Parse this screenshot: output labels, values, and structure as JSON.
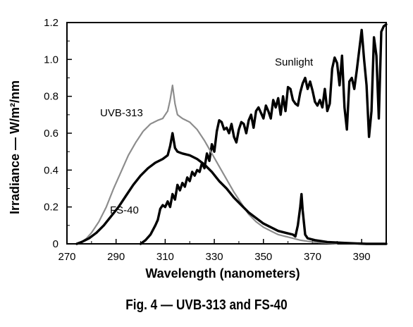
{
  "chart_data": {
    "type": "line",
    "xlabel": "Wavelength (nanometers)",
    "ylabel": "Irradiance — W/m²/nm",
    "xlim": [
      270,
      400
    ],
    "ylim": [
      0,
      1.2
    ],
    "x_ticks": [
      "270",
      "290",
      "310",
      "330",
      "350",
      "370",
      "390"
    ],
    "y_ticks": [
      "0",
      "0.2",
      "0.4",
      "0.6",
      "0.8",
      "1.0",
      "1.2"
    ],
    "grid": false,
    "annotations": [
      "Sunlight",
      "UVB-313",
      "FS-40"
    ],
    "series": [
      {
        "name": "Sunlight",
        "color": "#000000",
        "style": "thick",
        "points": [
          [
            300,
            0
          ],
          [
            302,
            0.02
          ],
          [
            304,
            0.05
          ],
          [
            306,
            0.1
          ],
          [
            307,
            0.13
          ],
          [
            308,
            0.19
          ],
          [
            309,
            0.21
          ],
          [
            310,
            0.2
          ],
          [
            311,
            0.23
          ],
          [
            312,
            0.2
          ],
          [
            313,
            0.27
          ],
          [
            314,
            0.24
          ],
          [
            315,
            0.32
          ],
          [
            316,
            0.29
          ],
          [
            317,
            0.33
          ],
          [
            318,
            0.31
          ],
          [
            319,
            0.36
          ],
          [
            320,
            0.34
          ],
          [
            321,
            0.39
          ],
          [
            322,
            0.37
          ],
          [
            323,
            0.4
          ],
          [
            324,
            0.39
          ],
          [
            325,
            0.44
          ],
          [
            326,
            0.41
          ],
          [
            327,
            0.49
          ],
          [
            328,
            0.45
          ],
          [
            329,
            0.54
          ],
          [
            330,
            0.5
          ],
          [
            331,
            0.61
          ],
          [
            332,
            0.67
          ],
          [
            333,
            0.66
          ],
          [
            334,
            0.62
          ],
          [
            335,
            0.63
          ],
          [
            336,
            0.6
          ],
          [
            337,
            0.65
          ],
          [
            338,
            0.58
          ],
          [
            339,
            0.55
          ],
          [
            340,
            0.62
          ],
          [
            341,
            0.66
          ],
          [
            342,
            0.65
          ],
          [
            343,
            0.6
          ],
          [
            344,
            0.67
          ],
          [
            345,
            0.7
          ],
          [
            346,
            0.63
          ],
          [
            347,
            0.72
          ],
          [
            348,
            0.74
          ],
          [
            349,
            0.71
          ],
          [
            350,
            0.68
          ],
          [
            351,
            0.75
          ],
          [
            352,
            0.72
          ],
          [
            353,
            0.68
          ],
          [
            354,
            0.78
          ],
          [
            355,
            0.74
          ],
          [
            356,
            0.79
          ],
          [
            357,
            0.7
          ],
          [
            358,
            0.8
          ],
          [
            359,
            0.72
          ],
          [
            360,
            0.85
          ],
          [
            361,
            0.84
          ],
          [
            362,
            0.78
          ],
          [
            363,
            0.76
          ],
          [
            364,
            0.75
          ],
          [
            365,
            0.82
          ],
          [
            366,
            0.87
          ],
          [
            367,
            0.9
          ],
          [
            368,
            0.84
          ],
          [
            369,
            0.88
          ],
          [
            370,
            0.83
          ],
          [
            371,
            0.77
          ],
          [
            372,
            0.75
          ],
          [
            373,
            0.78
          ],
          [
            374,
            0.74
          ],
          [
            375,
            0.84
          ],
          [
            376,
            0.72
          ],
          [
            377,
            0.76
          ],
          [
            378,
            0.95
          ],
          [
            379,
            1.01
          ],
          [
            380,
            0.98
          ],
          [
            381,
            0.86
          ],
          [
            382,
            1.02
          ],
          [
            383,
            0.74
          ],
          [
            384,
            0.62
          ],
          [
            385,
            0.88
          ],
          [
            386,
            0.9
          ],
          [
            387,
            0.84
          ],
          [
            388,
            0.94
          ],
          [
            389,
            1.05
          ],
          [
            390,
            1.16
          ],
          [
            391,
            1.0
          ],
          [
            392,
            0.86
          ],
          [
            393,
            0.58
          ],
          [
            394,
            0.72
          ],
          [
            395,
            1.12
          ],
          [
            396,
            1.02
          ],
          [
            397,
            0.68
          ],
          [
            398,
            1.15
          ],
          [
            399,
            1.18
          ],
          [
            400,
            1.19
          ]
        ]
      },
      {
        "name": "UVB-313",
        "color": "#8c8c8c",
        "style": "thin-light",
        "points": [
          [
            274,
            0
          ],
          [
            276,
            0.01
          ],
          [
            278,
            0.03
          ],
          [
            280,
            0.06
          ],
          [
            283,
            0.12
          ],
          [
            286,
            0.2
          ],
          [
            289,
            0.3
          ],
          [
            292,
            0.39
          ],
          [
            295,
            0.48
          ],
          [
            298,
            0.55
          ],
          [
            301,
            0.61
          ],
          [
            304,
            0.65
          ],
          [
            307,
            0.67
          ],
          [
            309,
            0.68
          ],
          [
            310,
            0.7
          ],
          [
            311,
            0.72
          ],
          [
            312,
            0.78
          ],
          [
            313,
            0.86
          ],
          [
            314,
            0.76
          ],
          [
            315,
            0.7
          ],
          [
            317,
            0.68
          ],
          [
            320,
            0.66
          ],
          [
            323,
            0.62
          ],
          [
            326,
            0.56
          ],
          [
            329,
            0.49
          ],
          [
            332,
            0.42
          ],
          [
            335,
            0.35
          ],
          [
            338,
            0.28
          ],
          [
            341,
            0.22
          ],
          [
            344,
            0.16
          ],
          [
            347,
            0.12
          ],
          [
            350,
            0.09
          ],
          [
            353,
            0.07
          ],
          [
            356,
            0.05
          ],
          [
            359,
            0.04
          ],
          [
            362,
            0.03
          ],
          [
            365,
            0.02
          ],
          [
            370,
            0.01
          ],
          [
            375,
            0.005
          ],
          [
            380,
            0
          ]
        ]
      },
      {
        "name": "FS-40",
        "color": "#000000",
        "style": "thick",
        "points": [
          [
            274,
            0
          ],
          [
            276,
            0.01
          ],
          [
            279,
            0.03
          ],
          [
            282,
            0.06
          ],
          [
            285,
            0.1
          ],
          [
            288,
            0.15
          ],
          [
            291,
            0.2
          ],
          [
            294,
            0.26
          ],
          [
            297,
            0.32
          ],
          [
            300,
            0.37
          ],
          [
            303,
            0.41
          ],
          [
            306,
            0.44
          ],
          [
            309,
            0.46
          ],
          [
            311,
            0.48
          ],
          [
            312,
            0.53
          ],
          [
            313,
            0.6
          ],
          [
            314,
            0.52
          ],
          [
            315,
            0.5
          ],
          [
            317,
            0.49
          ],
          [
            320,
            0.48
          ],
          [
            323,
            0.46
          ],
          [
            326,
            0.43
          ],
          [
            329,
            0.39
          ],
          [
            332,
            0.34
          ],
          [
            335,
            0.3
          ],
          [
            338,
            0.25
          ],
          [
            341,
            0.21
          ],
          [
            344,
            0.17
          ],
          [
            347,
            0.14
          ],
          [
            350,
            0.11
          ],
          [
            353,
            0.09
          ],
          [
            356,
            0.07
          ],
          [
            359,
            0.06
          ],
          [
            362,
            0.05
          ],
          [
            363,
            0.04
          ],
          [
            364,
            0.1
          ],
          [
            365,
            0.2
          ],
          [
            365.5,
            0.27
          ],
          [
            366,
            0.18
          ],
          [
            367,
            0.05
          ],
          [
            368,
            0.03
          ],
          [
            371,
            0.02
          ],
          [
            376,
            0.01
          ],
          [
            383,
            0.005
          ],
          [
            392,
            0
          ],
          [
            400,
            0
          ]
        ]
      }
    ]
  },
  "caption": "Fig. 4 — UVB-313 and FS-40"
}
